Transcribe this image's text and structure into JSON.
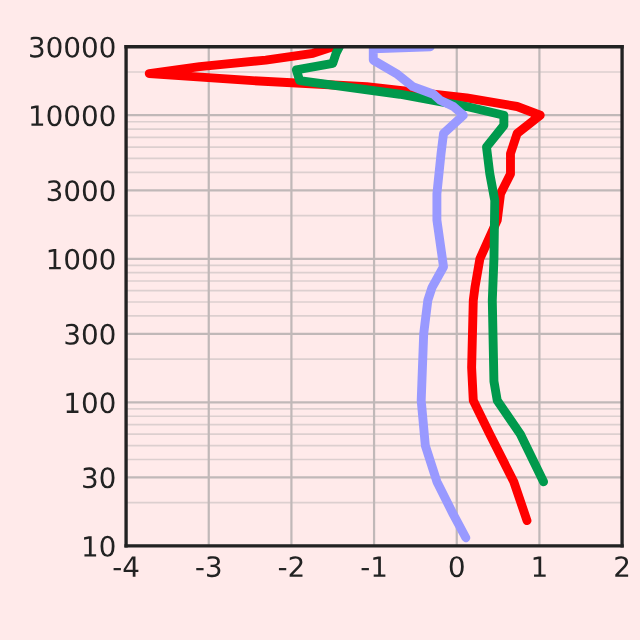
{
  "chart_data": {
    "type": "line",
    "log": "y",
    "grid": true,
    "line_style": "solid",
    "marker": "none",
    "xlim": [
      -4,
      2
    ],
    "xticks": [
      -4,
      -3,
      -2,
      -1,
      0,
      1,
      2
    ],
    "ylim": [
      10,
      30000
    ],
    "yticks": [
      10,
      30,
      100,
      300,
      1000,
      3000,
      10000,
      30000
    ],
    "series": [
      {
        "color": "#ff0000",
        "x": [
          0.85,
          0.69,
          0.4,
          0.2,
          0.18,
          0.2,
          0.22,
          0.28,
          0.49,
          0.53,
          0.65,
          0.65,
          0.73,
          1.01,
          0.73,
          0.12,
          -1.09,
          -2.47,
          -3.72,
          -3.11,
          -2.31,
          -1.74,
          -1.5
        ],
        "values": [
          15,
          28,
          60,
          103,
          175,
          513,
          630,
          1000,
          1860,
          2840,
          3900,
          5400,
          7450,
          10000,
          11500,
          13200,
          15800,
          17400,
          19500,
          21800,
          24200,
          27000,
          30000
        ]
      },
      {
        "color": "#00994c",
        "x": [
          1.05,
          0.77,
          0.49,
          0.45,
          0.43,
          0.45,
          0.46,
          0.4,
          0.36,
          0.57,
          0.57,
          0.12,
          -0.69,
          -1.9,
          -1.94,
          -1.5,
          -1.46,
          -1.42
        ],
        "values": [
          28,
          60,
          103,
          140,
          513,
          1000,
          2550,
          3900,
          6000,
          8500,
          10000,
          11500,
          14000,
          17400,
          20700,
          23000,
          27000,
          30000
        ]
      },
      {
        "color": "#9999ff",
        "x": [
          0.11,
          -0.04,
          -0.24,
          -0.38,
          -0.43,
          -0.4,
          -0.35,
          -0.3,
          -0.16,
          -0.24,
          -0.24,
          -0.19,
          -0.16,
          0.08,
          -0.04,
          -0.2,
          -0.28,
          -0.53,
          -0.73,
          -1.01,
          -1.01,
          -0.32
        ],
        "values": [
          11.4,
          16.5,
          28,
          50,
          103,
          300,
          513,
          630,
          880,
          1860,
          2840,
          5400,
          7450,
          10000,
          11500,
          12700,
          14000,
          15800,
          19500,
          24200,
          29000,
          30000
        ]
      }
    ]
  }
}
